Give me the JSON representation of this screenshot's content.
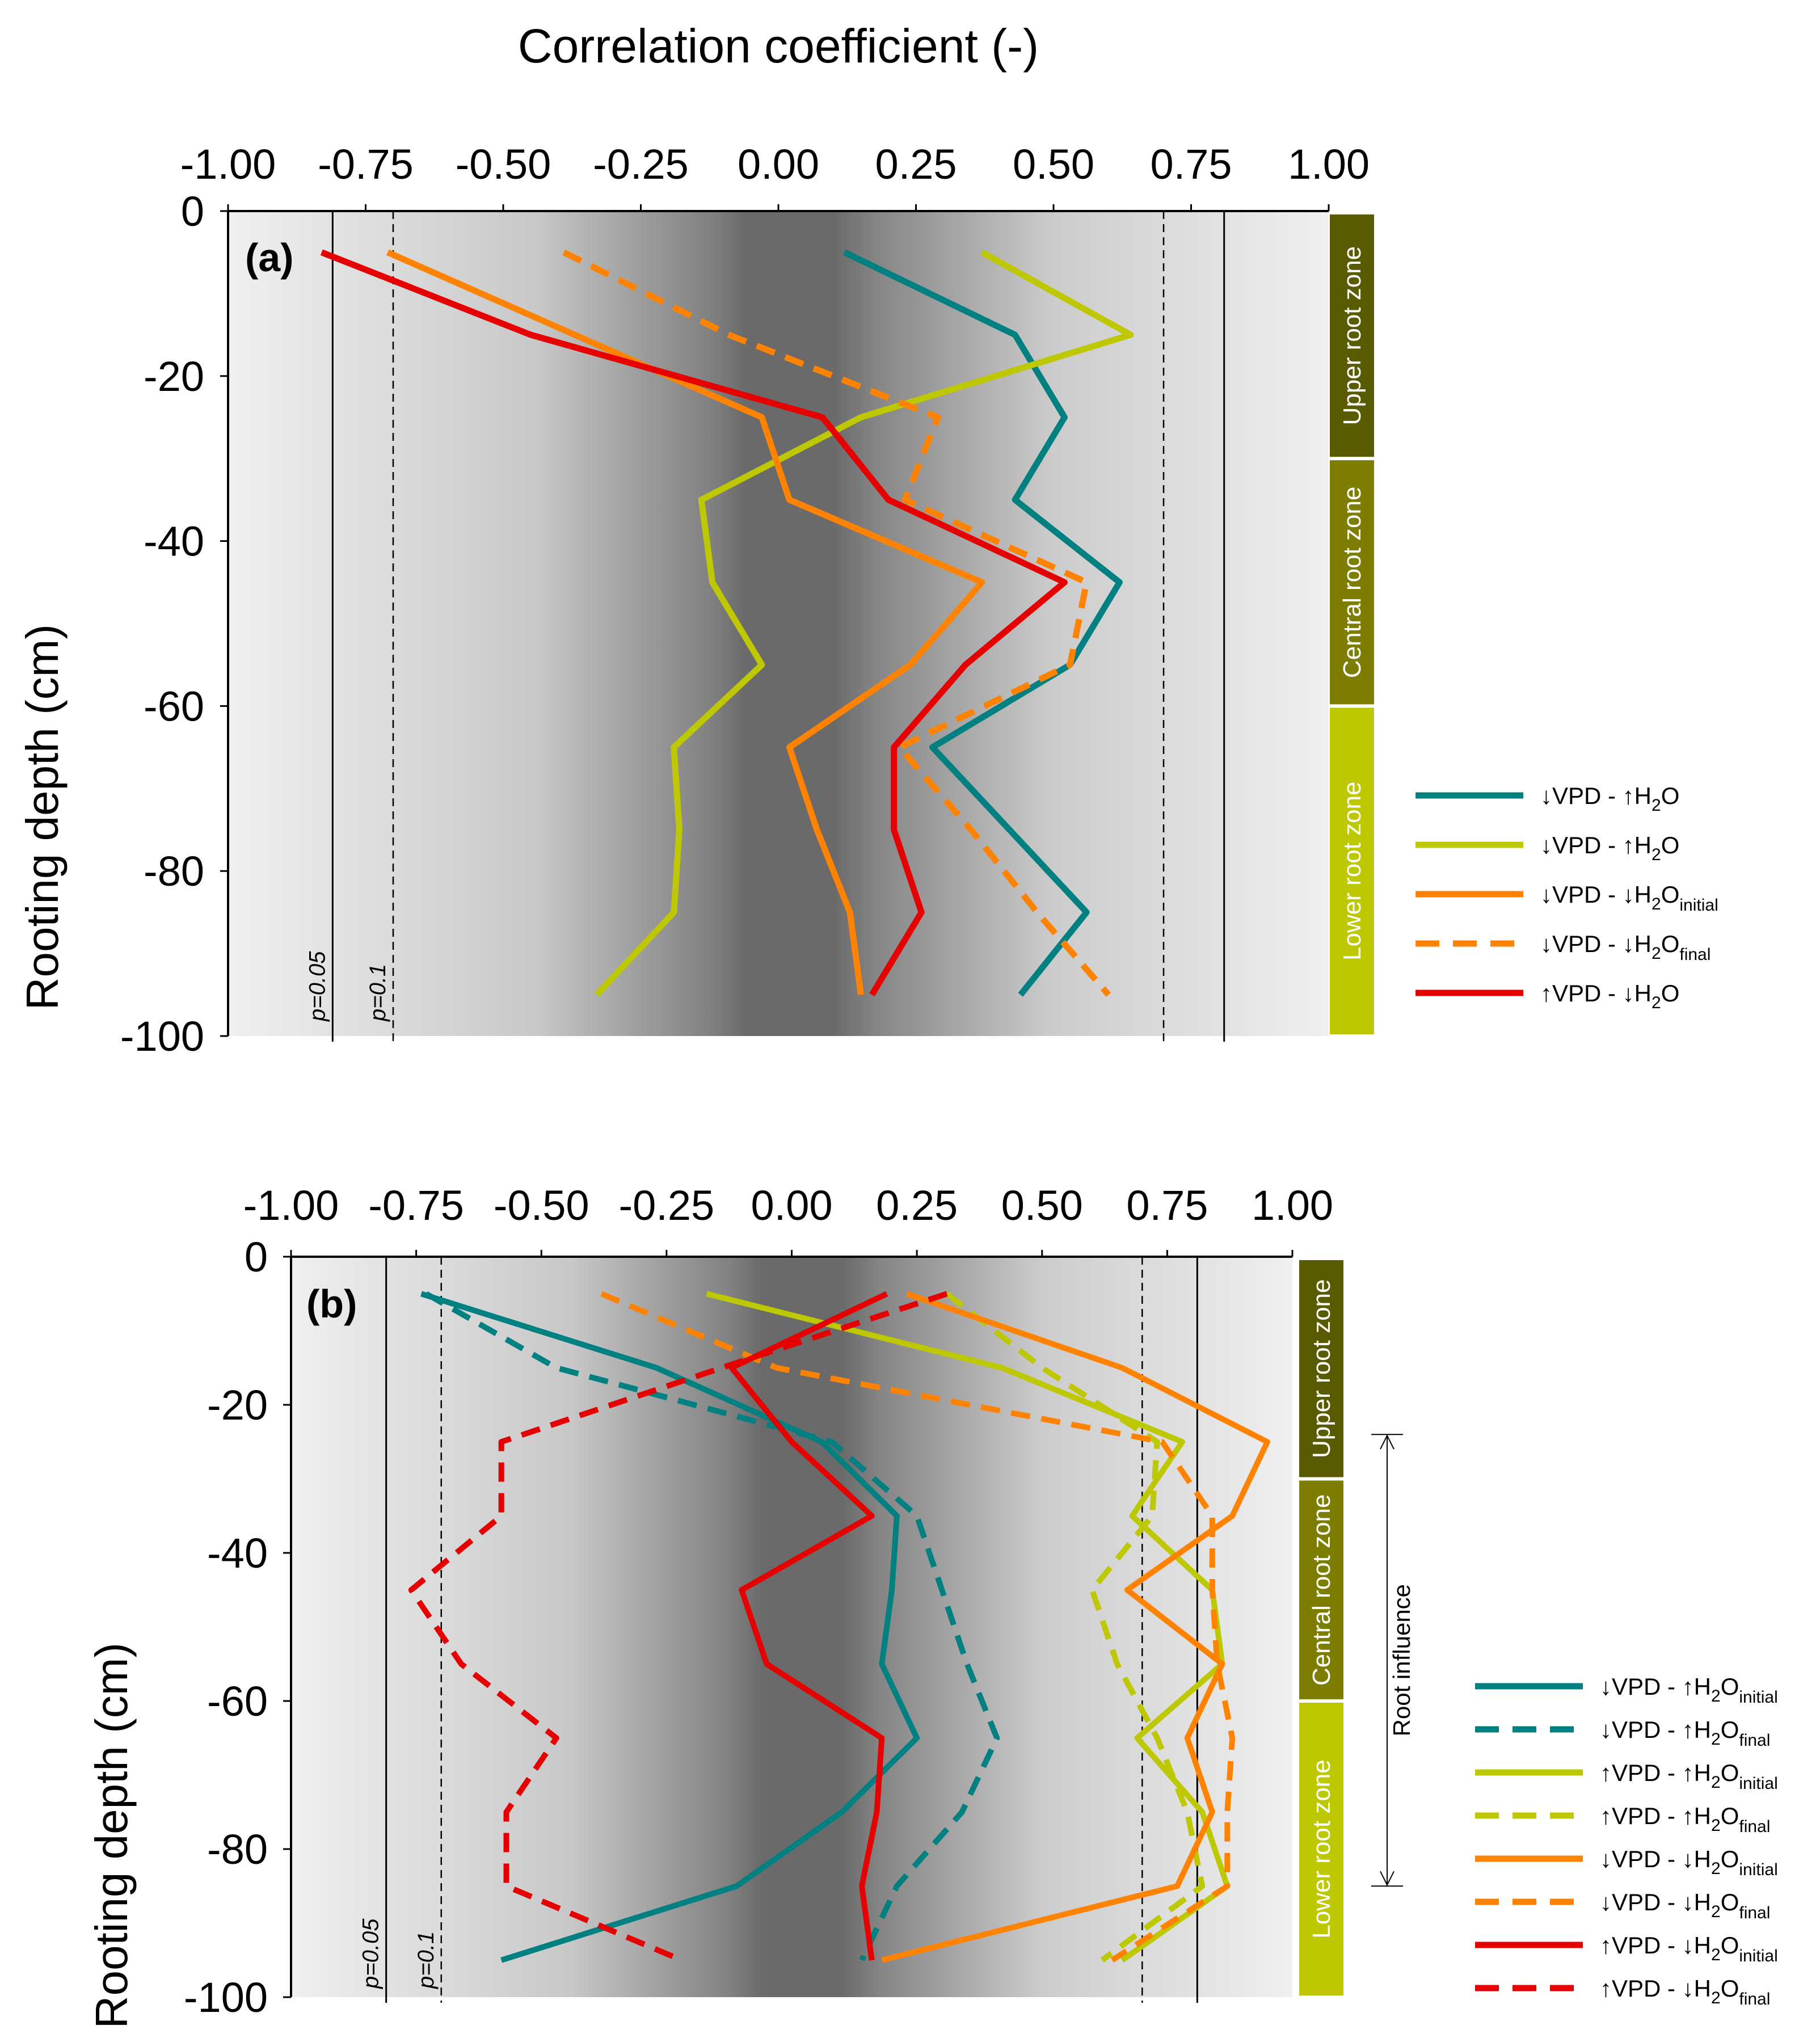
{
  "figure_title": "Correlation coefficient (-)",
  "ylabel": "Rooting depth (cm)",
  "zones": [
    "Upper root zone",
    "Central root zone",
    "Lower root zone"
  ],
  "root_influence_label": "Root influence",
  "colors": {
    "teal": "#008080",
    "yellowgreen": "#bec800",
    "orange": "#ff8200",
    "red": "#e60000",
    "zone_upper": "#5a5a00",
    "zone_central": "#7d7d00",
    "zone_lower": "#bec800"
  },
  "chart_data": [
    {
      "type": "line",
      "panel": "(a)",
      "title": "Correlation coefficient (-)",
      "xlabel": "Correlation coefficient (-)",
      "ylabel": "Rooting depth (cm)",
      "xlim": [
        -1.0,
        1.0
      ],
      "ylim": [
        -100,
        0
      ],
      "x_ticks": [
        "-1.00",
        "-0.75",
        "-0.50",
        "-0.25",
        "0.00",
        "0.25",
        "0.50",
        "0.75",
        "1.00"
      ],
      "y_ticks": [
        "0",
        "-20",
        "-40",
        "-60",
        "-80",
        "-100"
      ],
      "significance": [
        {
          "label": "p=0.05",
          "r": 0.81,
          "style": "solid"
        },
        {
          "label": "p=0.1",
          "r": 0.7,
          "style": "dashed"
        }
      ],
      "zone_bounds": [
        [
          0,
          -30
        ],
        [
          -30,
          -60
        ],
        [
          -60,
          -100
        ]
      ],
      "depths": [
        -5,
        -15,
        -25,
        -35,
        -45,
        -55,
        -65,
        -75,
        -85,
        -95
      ],
      "series": [
        {
          "name": "↓VPD - ↑H2O",
          "label": "↓VPD - ↑H",
          "sub": "2",
          "tail": "O",
          "color": "#008080",
          "dash": "solid",
          "x": [
            0.12,
            0.43,
            0.52,
            0.43,
            0.62,
            0.53,
            0.28,
            0.42,
            0.56,
            0.44
          ]
        },
        {
          "name": "↓VPD - ↑H2O",
          "label": "↓VPD - ↑H",
          "sub": "2",
          "tail": "O",
          "color": "#bec800",
          "dash": "solid",
          "x": [
            0.37,
            0.64,
            0.15,
            -0.14,
            -0.12,
            -0.03,
            -0.19,
            -0.18,
            -0.19,
            -0.33
          ]
        },
        {
          "name": "↓VPD - ↓H2Oinitial",
          "label": "↓VPD - ↓H",
          "sub": "2",
          "tail": "O",
          "tailSub": "initial",
          "color": "#ff8200",
          "dash": "solid",
          "x": [
            -0.71,
            -0.37,
            -0.03,
            0.02,
            0.37,
            0.24,
            0.02,
            0.07,
            0.13,
            0.15
          ]
        },
        {
          "name": "↓VPD - ↓H2Ofinal",
          "label": "↓VPD - ↓H",
          "sub": "2",
          "tail": "O",
          "tailSub": "final",
          "color": "#ff8200",
          "dash": "dashed",
          "x": [
            -0.39,
            -0.09,
            0.29,
            0.23,
            0.56,
            0.53,
            0.22,
            0.35,
            0.47,
            0.6
          ]
        },
        {
          "name": "↑VPD - ↓H2O",
          "label": "↑VPD - ↓H",
          "sub": "2",
          "tail": "O",
          "color": "#e60000",
          "dash": "solid",
          "x": [
            -0.83,
            -0.45,
            0.08,
            0.2,
            0.52,
            0.34,
            0.21,
            0.21,
            0.26,
            0.17
          ]
        }
      ]
    },
    {
      "type": "line",
      "panel": "(b)",
      "xlim": [
        -1.0,
        1.0
      ],
      "ylim": [
        -100,
        0
      ],
      "x_ticks": [
        "-1.00",
        "-0.75",
        "-0.50",
        "-0.25",
        "0.00",
        "0.25",
        "0.50",
        "0.75",
        "1.00"
      ],
      "y_ticks": [
        "0",
        "-20",
        "-40",
        "-60",
        "-80",
        "-100"
      ],
      "ylabel": "Rooting depth (cm)",
      "significance": [
        {
          "label": "p=0.05",
          "r": 0.81,
          "style": "solid"
        },
        {
          "label": "p=0.1",
          "r": 0.7,
          "style": "dashed"
        }
      ],
      "zone_bounds": [
        [
          0,
          -30
        ],
        [
          -30,
          -60
        ],
        [
          -60,
          -100
        ]
      ],
      "root_influence": [
        -24,
        -85
      ],
      "depths": [
        -5,
        -15,
        -25,
        -35,
        -45,
        -55,
        -65,
        -75,
        -85,
        -95
      ],
      "series": [
        {
          "name": "↓VPD - ↑H2Oinitial",
          "label": "↓VPD - ↑H",
          "sub": "2",
          "tail": "O",
          "tailSub": "initial",
          "color": "#008080",
          "dash": "solid",
          "x": [
            -0.74,
            -0.27,
            0.06,
            0.21,
            0.2,
            0.18,
            0.25,
            0.1,
            -0.11,
            -0.58
          ]
        },
        {
          "name": "↓VPD - ↑H2Ofinal",
          "label": "↓VPD - ↑H",
          "sub": "2",
          "tail": "O",
          "tailSub": "final",
          "color": "#008080",
          "dash": "dashed",
          "x": [
            -0.73,
            -0.47,
            0.08,
            0.25,
            0.3,
            0.35,
            0.41,
            0.34,
            0.21,
            0.14
          ]
        },
        {
          "name": "↑VPD - ↑H2Oinitial",
          "label": "↑VPD - ↑H",
          "sub": "2",
          "tail": "O",
          "tailSub": "initial",
          "color": "#bec800",
          "dash": "solid",
          "x": [
            -0.17,
            0.42,
            0.78,
            0.68,
            0.84,
            0.86,
            0.69,
            0.82,
            0.87,
            0.66
          ]
        },
        {
          "name": "↑VPD - ↑H2Ofinal",
          "label": "↑VPD - ↑H",
          "sub": "2",
          "tail": "O",
          "tailSub": "final",
          "color": "#bec800",
          "dash": "dashed",
          "x": [
            0.31,
            0.5,
            0.73,
            0.72,
            0.6,
            0.65,
            0.73,
            0.79,
            0.82,
            0.62
          ]
        },
        {
          "name": "↓VPD - ↓H2Oinitial",
          "label": "↓VPD - ↓H",
          "sub": "2",
          "tail": "O",
          "tailSub": "initial",
          "color": "#ff8200",
          "dash": "solid",
          "x": [
            0.23,
            0.66,
            0.95,
            0.88,
            0.67,
            0.86,
            0.79,
            0.84,
            0.77,
            0.18
          ]
        },
        {
          "name": "↓VPD - ↓H2Ofinal",
          "label": "↓VPD - ↓H",
          "sub": "2",
          "tail": "O",
          "tailSub": "final",
          "color": "#ff8200",
          "dash": "dashed",
          "x": [
            -0.38,
            -0.03,
            0.74,
            0.84,
            0.84,
            0.85,
            0.88,
            0.87,
            0.87,
            0.64
          ]
        },
        {
          "name": "↑VPD - ↓H2Oinitial",
          "label": "↑VPD - ↓H",
          "sub": "2",
          "tail": "O",
          "tailSub": "initial",
          "color": "#e60000",
          "dash": "solid",
          "x": [
            0.19,
            -0.12,
            0.0,
            0.16,
            -0.1,
            -0.05,
            0.18,
            0.17,
            0.14,
            0.16
          ]
        },
        {
          "name": "↑VPD - ↓H2Ofinal",
          "label": "↑VPD - ↓H",
          "sub": "2",
          "tail": "O",
          "tailSub": "final",
          "color": "#e60000",
          "dash": "dashed",
          "x": [
            0.31,
            -0.14,
            -0.58,
            -0.58,
            -0.76,
            -0.66,
            -0.47,
            -0.57,
            -0.57,
            -0.22
          ]
        }
      ]
    }
  ]
}
